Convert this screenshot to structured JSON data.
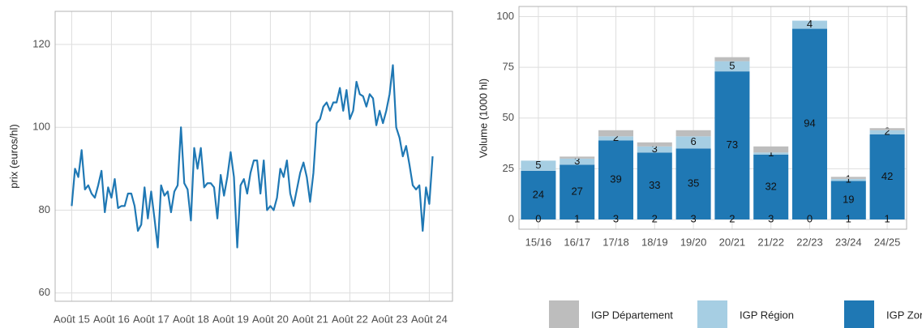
{
  "chart_data": [
    {
      "type": "line",
      "y_label": "prix (euros/hl)",
      "x": [
        "2015-08",
        "2015-09",
        "2015-10",
        "2015-11",
        "2015-12",
        "2016-01",
        "2016-02",
        "2016-03",
        "2016-04",
        "2016-05",
        "2016-06",
        "2016-07",
        "2016-08",
        "2016-09",
        "2016-10",
        "2016-11",
        "2016-12",
        "2017-01",
        "2017-02",
        "2017-03",
        "2017-04",
        "2017-05",
        "2017-06",
        "2017-07",
        "2017-08",
        "2017-09",
        "2017-10",
        "2017-11",
        "2017-12",
        "2018-01",
        "2018-02",
        "2018-03",
        "2018-04",
        "2018-05",
        "2018-06",
        "2018-07",
        "2018-08",
        "2018-09",
        "2018-10",
        "2018-11",
        "2018-12",
        "2019-01",
        "2019-02",
        "2019-03",
        "2019-04",
        "2019-05",
        "2019-06",
        "2019-07",
        "2019-08",
        "2019-09",
        "2019-10",
        "2019-11",
        "2019-12",
        "2020-01",
        "2020-02",
        "2020-03",
        "2020-04",
        "2020-05",
        "2020-06",
        "2020-07",
        "2020-08",
        "2020-09",
        "2020-10",
        "2020-11",
        "2020-12",
        "2021-01",
        "2021-02",
        "2021-03",
        "2021-04",
        "2021-05",
        "2021-06",
        "2021-07",
        "2021-08",
        "2021-09",
        "2021-10",
        "2021-11",
        "2021-12",
        "2022-01",
        "2022-02",
        "2022-03",
        "2022-04",
        "2022-05",
        "2022-06",
        "2022-07",
        "2022-08",
        "2022-09",
        "2022-10",
        "2022-11",
        "2022-12",
        "2023-01",
        "2023-02",
        "2023-03",
        "2023-04",
        "2023-05",
        "2023-06",
        "2023-07",
        "2023-08",
        "2023-09",
        "2023-10",
        "2023-11",
        "2023-12",
        "2024-01",
        "2024-02",
        "2024-03",
        "2024-04",
        "2024-05",
        "2024-06",
        "2024-07",
        "2024-08",
        "2024-09"
      ],
      "series": [
        {
          "color": "#1f78b4",
          "values": [
            81,
            90,
            88,
            94.5,
            85,
            86,
            84,
            83,
            86,
            89.5,
            79.5,
            85.5,
            83,
            87.5,
            80.5,
            81,
            81,
            84,
            84,
            81,
            75,
            76.5,
            85.5,
            78,
            84.5,
            78,
            71,
            86,
            83.5,
            84.5,
            79.5,
            84.5,
            86,
            100,
            86.5,
            85,
            77.5,
            95,
            90,
            95,
            85.5,
            86.5,
            86.5,
            85.5,
            78,
            88.5,
            83.5,
            88,
            94,
            88,
            71,
            86,
            87.5,
            84,
            89,
            92,
            92,
            84,
            92,
            80,
            81,
            80,
            83,
            90,
            88,
            92,
            84,
            81,
            85,
            89,
            91.5,
            88,
            82,
            89,
            101,
            102,
            105,
            106,
            104,
            106,
            106,
            109.5,
            104,
            109,
            102,
            104,
            111,
            108,
            107.5,
            105,
            108,
            107,
            100.5,
            104,
            101,
            104,
            108,
            115,
            100,
            97.5,
            93,
            95.5,
            91,
            86,
            85,
            86,
            75,
            85.5,
            81.5,
            93
          ]
        }
      ],
      "xlim": [
        "2015-03",
        "2025-03"
      ],
      "xticks": [
        {
          "value": "2015-08",
          "label": "Août 15"
        },
        {
          "value": "2016-08",
          "label": "Août 16"
        },
        {
          "value": "2017-08",
          "label": "Août 17"
        },
        {
          "value": "2018-08",
          "label": "Août 18"
        },
        {
          "value": "2019-08",
          "label": "Août 19"
        },
        {
          "value": "2020-08",
          "label": "Août 20"
        },
        {
          "value": "2021-08",
          "label": "Août 21"
        },
        {
          "value": "2022-08",
          "label": "Août 22"
        },
        {
          "value": "2023-08",
          "label": "Août 23"
        },
        {
          "value": "2024-08",
          "label": "Août 24"
        }
      ],
      "ylim": [
        58,
        128
      ],
      "yticks": [
        60,
        80,
        100,
        120
      ],
      "grid": true
    },
    {
      "type": "stacked_bar",
      "y_label": "Volume (1000 hl)",
      "categories": [
        "15/16",
        "16/17",
        "17/18",
        "18/19",
        "19/20",
        "20/21",
        "21/22",
        "22/23",
        "23/24",
        "24/25"
      ],
      "series": [
        {
          "name": "IGP Zone",
          "color": "#1f78b4",
          "values": [
            24,
            27,
            39,
            33,
            35,
            73,
            32,
            94,
            19,
            42
          ]
        },
        {
          "name": "IGP Région",
          "color": "#a6cee3",
          "values": [
            5,
            3,
            2,
            3,
            6,
            5,
            1,
            4,
            1,
            2
          ]
        },
        {
          "name": "IGP Département",
          "color": "#bdbdbd",
          "values": [
            0,
            1,
            3,
            2,
            3,
            2,
            3,
            0,
            1,
            1
          ]
        }
      ],
      "ylim": [
        -4.8,
        105
      ],
      "yticks": [
        0,
        25,
        50,
        75,
        100
      ],
      "grid": true,
      "legend": "bottom"
    }
  ]
}
